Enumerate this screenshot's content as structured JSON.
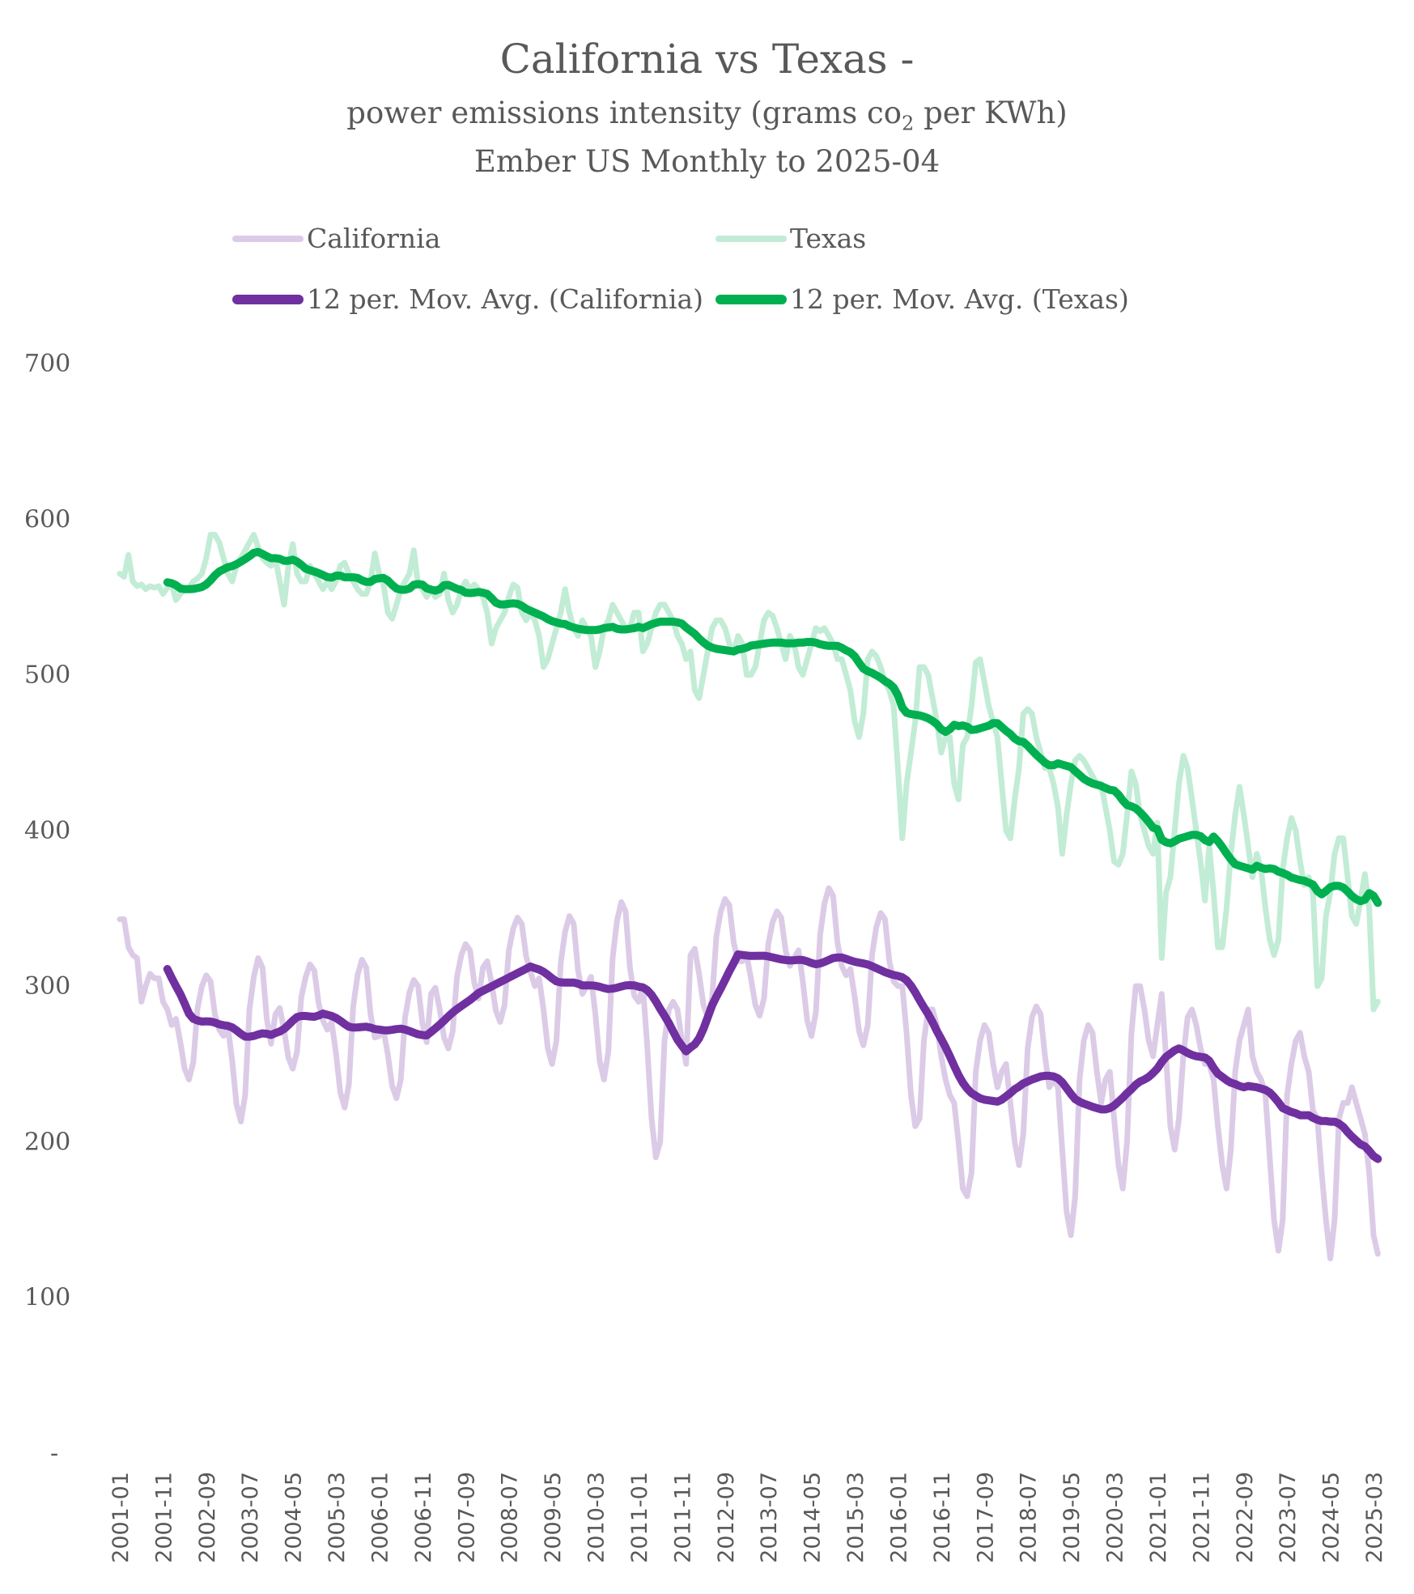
{
  "chart_data": {
    "type": "line",
    "title": "California vs Texas -",
    "subtitle_pre": "power emissions intensity (grams co",
    "subtitle_sub": "2",
    "subtitle_post": " per KWh)",
    "subtitle2": "Ember US Monthly to 2025-04",
    "x_start": "2001-01",
    "x_end": "2025-04",
    "x_frequency": "monthly",
    "x_tick_labels": [
      "2001-01",
      "2001-11",
      "2002-09",
      "2003-07",
      "2004-05",
      "2005-03",
      "2006-01",
      "2006-11",
      "2007-09",
      "2008-07",
      "2009-05",
      "2010-03",
      "2011-01",
      "2011-11",
      "2012-09",
      "2013-07",
      "2014-05",
      "2015-03",
      "2016-01",
      "2016-11",
      "2017-09",
      "2018-07",
      "2019-05",
      "2020-03",
      "2021-01",
      "2021-11",
      "2022-09",
      "2023-07",
      "2024-05",
      "2025-03"
    ],
    "y_tick_labels": [
      "-",
      "100",
      "200",
      "300",
      "400",
      "500",
      "600",
      "700"
    ],
    "ylim": [
      0,
      700
    ],
    "grid": false,
    "legend_placement": "top",
    "series": [
      {
        "name": "California",
        "color": "#dccbe7",
        "values": [
          343,
          343,
          325,
          320,
          318,
          290,
          300,
          308,
          305,
          305,
          290,
          285,
          275,
          279,
          264,
          247,
          240,
          251,
          286,
          300,
          307,
          303,
          282,
          272,
          268,
          274,
          252,
          224,
          213,
          230,
          285,
          306,
          318,
          312,
          279,
          263,
          282,
          286,
          272,
          254,
          247,
          258,
          293,
          306,
          314,
          310,
          289,
          278,
          272,
          277,
          257,
          232,
          222,
          237,
          287,
          307,
          317,
          312,
          282,
          267,
          268,
          272,
          256,
          236,
          228,
          240,
          280,
          296,
          304,
          300,
          276,
          264,
          295,
          299,
          285,
          267,
          260,
          271,
          306,
          320,
          327,
          323,
          302,
          292,
          312,
          316,
          302,
          284,
          277,
          288,
          323,
          337,
          344,
          340,
          319,
          309,
          300,
          305,
          285,
          260,
          250,
          265,
          315,
          335,
          345,
          340,
          310,
          295,
          300,
          306,
          282,
          252,
          240,
          258,
          318,
          342,
          354,
          348,
          312,
          294,
          290,
          300,
          262,
          215,
          190,
          200,
          265,
          285,
          290,
          285,
          265,
          250,
          320,
          324,
          308,
          288,
          280,
          292,
          332,
          348,
          356,
          352,
          328,
          316,
          316,
          320,
          305,
          288,
          281,
          292,
          327,
          341,
          348,
          344,
          323,
          313,
          318,
          323,
          303,
          278,
          268,
          283,
          333,
          353,
          363,
          358,
          328,
          313,
          307,
          311,
          293,
          271,
          262,
          275,
          320,
          338,
          347,
          343,
          316,
          303,
          300,
          300,
          270,
          230,
          210,
          215,
          265,
          285,
          285,
          275,
          255,
          240,
          230,
          225,
          200,
          170,
          165,
          180,
          245,
          265,
          275,
          270,
          250,
          235,
          245,
          250,
          225,
          200,
          185,
          205,
          260,
          280,
          287,
          282,
          255,
          235,
          240,
          235,
          195,
          155,
          140,
          165,
          240,
          265,
          275,
          270,
          245,
          225,
          240,
          245,
          215,
          185,
          170,
          200,
          270,
          300,
          300,
          285,
          265,
          255,
          275,
          295,
          255,
          210,
          195,
          215,
          255,
          280,
          285,
          275,
          260,
          250,
          250,
          240,
          210,
          185,
          170,
          195,
          245,
          265,
          275,
          285,
          255,
          245,
          240,
          230,
          190,
          150,
          130,
          150,
          230,
          250,
          265,
          270,
          255,
          245,
          220,
          215,
          180,
          150,
          125,
          150,
          215,
          225,
          225,
          235,
          225,
          215,
          205,
          180,
          140,
          128
        ]
      },
      {
        "name": "Texas",
        "color": "#c2ecd5",
        "values": [
          565,
          563,
          577,
          560,
          557,
          558,
          555,
          557,
          556,
          557,
          552,
          556,
          558,
          548,
          552,
          555,
          556,
          560,
          562,
          565,
          575,
          590,
          590,
          585,
          575,
          565,
          560,
          570,
          575,
          580,
          585,
          590,
          582,
          575,
          572,
          570,
          575,
          560,
          545,
          570,
          584,
          565,
          560,
          560,
          570,
          565,
          560,
          555,
          560,
          555,
          560,
          570,
          572,
          565,
          560,
          555,
          552,
          552,
          560,
          578,
          565,
          558,
          540,
          536,
          545,
          555,
          560,
          565,
          580,
          558,
          555,
          550,
          555,
          550,
          552,
          565,
          548,
          540,
          545,
          555,
          560,
          555,
          558,
          555,
          550,
          540,
          520,
          530,
          535,
          540,
          550,
          558,
          556,
          540,
          535,
          540,
          535,
          525,
          505,
          510,
          520,
          530,
          540,
          555,
          540,
          530,
          525,
          535,
          530,
          525,
          505,
          515,
          530,
          535,
          545,
          540,
          535,
          530,
          530,
          540,
          540,
          515,
          520,
          530,
          540,
          545,
          545,
          540,
          535,
          525,
          520,
          510,
          515,
          490,
          485,
          500,
          515,
          530,
          535,
          535,
          530,
          520,
          515,
          525,
          520,
          500,
          500,
          505,
          520,
          535,
          540,
          538,
          530,
          520,
          510,
          525,
          520,
          505,
          500,
          510,
          520,
          530,
          528,
          530,
          525,
          520,
          510,
          510,
          500,
          490,
          470,
          460,
          475,
          510,
          515,
          512,
          505,
          495,
          490,
          480,
          440,
          395,
          430,
          450,
          470,
          505,
          505,
          500,
          485,
          470,
          450,
          460,
          460,
          430,
          420,
          455,
          460,
          480,
          508,
          510,
          495,
          480,
          470,
          460,
          430,
          400,
          395,
          420,
          440,
          475,
          478,
          475,
          460,
          450,
          440,
          440,
          430,
          415,
          385,
          410,
          430,
          445,
          448,
          445,
          440,
          435,
          430,
          430,
          415,
          400,
          380,
          378,
          385,
          410,
          438,
          430,
          410,
          400,
          390,
          385,
          405,
          318,
          360,
          370,
          400,
          430,
          448,
          440,
          420,
          400,
          380,
          355,
          390,
          360,
          325,
          325,
          350,
          385,
          410,
          428,
          410,
          390,
          370,
          385,
          375,
          350,
          330,
          320,
          330,
          375,
          395,
          408,
          400,
          380,
          365,
          370,
          360,
          300,
          305,
          345,
          360,
          385,
          395,
          395,
          370,
          345,
          340,
          355,
          372,
          350,
          285,
          290
        ]
      }
    ],
    "trendlines": [
      {
        "name": "12 per. Mov. Avg. (California)",
        "of": "California",
        "type": "moving_average",
        "period": 12,
        "color": "#7030a0"
      },
      {
        "name": "12 per. Mov. Avg. (Texas)",
        "of": "Texas",
        "type": "moving_average",
        "period": 12,
        "color": "#00b050"
      }
    ]
  }
}
